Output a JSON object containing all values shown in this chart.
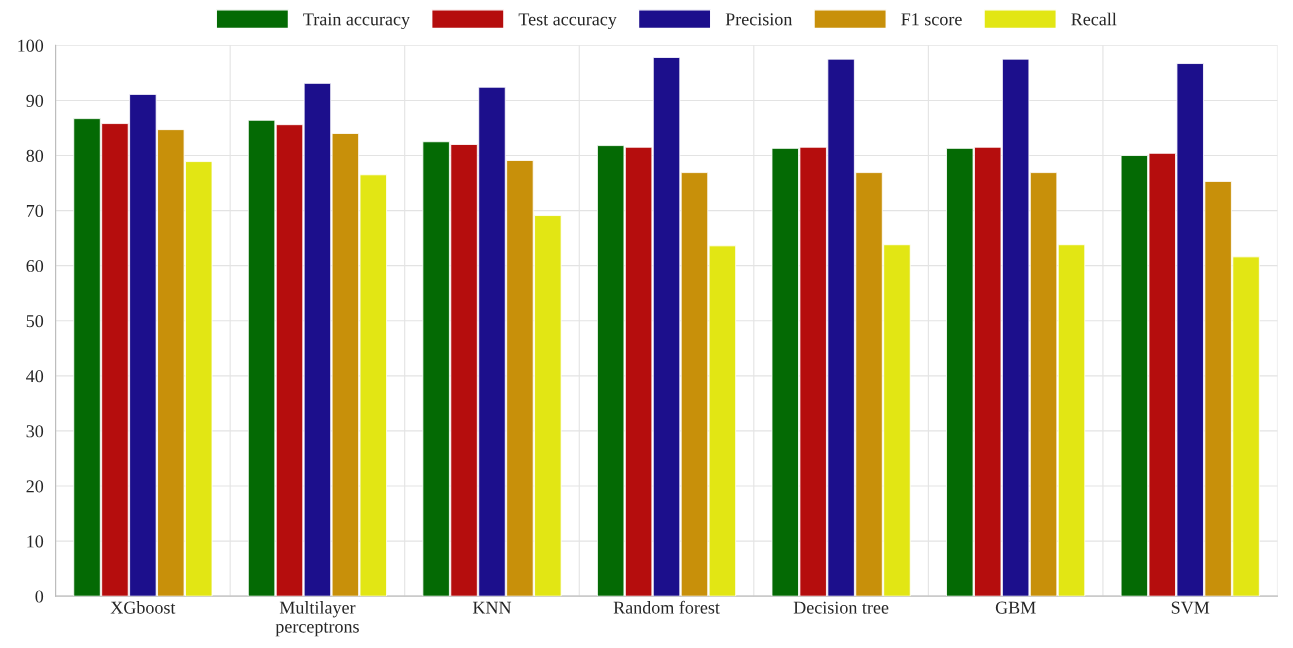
{
  "chart_data": {
    "type": "bar",
    "categories": [
      "XGboost",
      "Multilayer\nperceptrons",
      "KNN",
      "Random forest",
      "Decision tree",
      "GBM",
      "SVM"
    ],
    "series": [
      {
        "name": "Train accuracy",
        "color": "#046a04",
        "values": [
          86.7,
          86.4,
          82.5,
          81.8,
          81.3,
          81.3,
          80.0
        ]
      },
      {
        "name": "Test accuracy",
        "color": "#b50d0d",
        "values": [
          85.8,
          85.6,
          82.0,
          81.5,
          81.5,
          81.5,
          80.4
        ]
      },
      {
        "name": "Precision",
        "color": "#1c0f8c",
        "values": [
          91.1,
          93.1,
          92.4,
          97.8,
          97.5,
          97.5,
          96.7
        ]
      },
      {
        "name": "F1 score",
        "color": "#c8900a",
        "values": [
          84.7,
          84.0,
          79.1,
          76.9,
          76.9,
          76.9,
          75.3
        ]
      },
      {
        "name": "Recall",
        "color": "#e2e614",
        "values": [
          78.9,
          76.5,
          69.1,
          63.6,
          63.8,
          63.8,
          61.6
        ]
      }
    ],
    "ylim": [
      0,
      100
    ],
    "yticks": [
      0,
      10,
      20,
      30,
      40,
      50,
      60,
      70,
      80,
      90,
      100
    ],
    "grid": true,
    "legend": "top"
  }
}
